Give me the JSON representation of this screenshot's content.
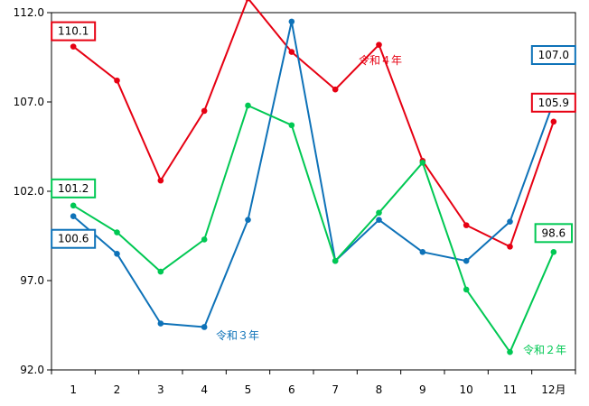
{
  "chart_data": {
    "type": "line",
    "title": "",
    "xlabel": "",
    "ylabel": "",
    "categories": [
      "1",
      "2",
      "3",
      "4",
      "5",
      "6",
      "7",
      "8",
      "9",
      "10",
      "11",
      "12月"
    ],
    "ylim": [
      92.0,
      112.0
    ],
    "y_ticks": [
      "92.0",
      "97.0",
      "102.0",
      "107.0",
      "112.0"
    ],
    "grid": false,
    "legend": "none",
    "series": [
      {
        "name": "令和４年",
        "color": "#e60012",
        "values": [
          110.1,
          108.2,
          102.6,
          106.5,
          112.8,
          109.8,
          107.7,
          110.2,
          103.7,
          100.1,
          98.9,
          105.9
        ]
      },
      {
        "name": "令和３年",
        "color": "#0e72b8",
        "values": [
          100.6,
          98.5,
          94.6,
          94.4,
          100.4,
          111.5,
          98.1,
          100.4,
          98.6,
          98.1,
          100.3,
          107.0
        ]
      },
      {
        "name": "令和２年",
        "color": "#00c853",
        "values": [
          101.2,
          99.7,
          97.5,
          99.3,
          106.8,
          105.7,
          98.1,
          100.8,
          103.6,
          96.5,
          93.0,
          98.6
        ]
      }
    ],
    "annotations": [
      {
        "text": "110.1",
        "series": 0,
        "index": 0
      },
      {
        "text": "105.9",
        "series": 0,
        "index": 11
      },
      {
        "text": "100.6",
        "series": 1,
        "index": 0
      },
      {
        "text": "107.0",
        "series": 1,
        "index": 11
      },
      {
        "text": "101.2",
        "series": 2,
        "index": 0
      },
      {
        "text": "98.6",
        "series": 2,
        "index": 11
      }
    ]
  }
}
